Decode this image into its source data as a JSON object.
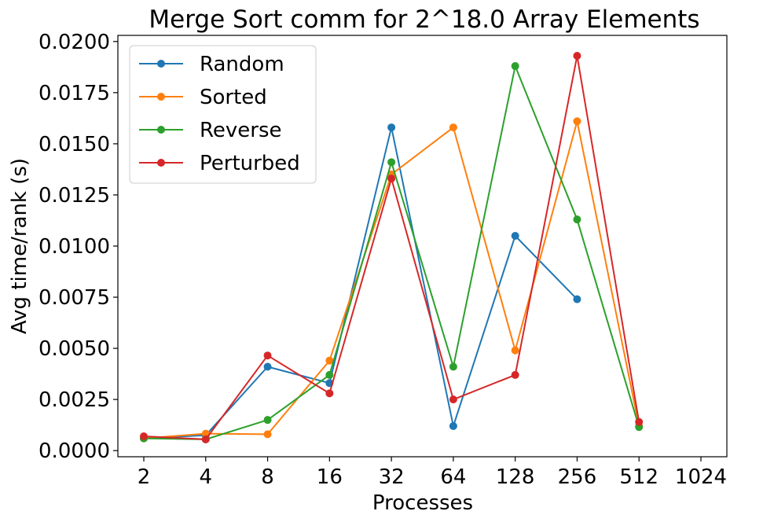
{
  "chart_data": {
    "type": "line",
    "title": "Merge Sort comm for 2^18.0 Array Elements",
    "xlabel": "Processes",
    "ylabel": "Avg time/rank (s)",
    "categories": [
      "2",
      "4",
      "8",
      "16",
      "32",
      "64",
      "128",
      "256",
      "512",
      "1024"
    ],
    "ylim": [
      -0.0003,
      0.0203
    ],
    "yticks": [
      "0.0000",
      "0.0025",
      "0.0050",
      "0.0075",
      "0.0100",
      "0.0125",
      "0.0150",
      "0.0175",
      "0.0200"
    ],
    "ytick_values": [
      0,
      0.0025,
      0.005,
      0.0075,
      0.01,
      0.0125,
      0.015,
      0.0175,
      0.02
    ],
    "legend_position": "top-left",
    "grid": false,
    "series": [
      {
        "name": "Random",
        "color": "#1f77b4",
        "values": [
          0.0006,
          0.00075,
          0.0041,
          0.0033,
          0.0158,
          0.0012,
          0.0105,
          0.0074,
          null,
          null
        ]
      },
      {
        "name": "Sorted",
        "color": "#ff7f0e",
        "values": [
          0.0006,
          0.00083,
          0.0008,
          0.0044,
          0.0135,
          0.0158,
          0.0049,
          0.0161,
          0.0012,
          null
        ]
      },
      {
        "name": "Reverse",
        "color": "#2ca02c",
        "values": [
          0.0006,
          0.00055,
          0.0015,
          0.0037,
          0.0141,
          0.0041,
          0.0188,
          0.0113,
          0.00115,
          null
        ]
      },
      {
        "name": "Perturbed",
        "color": "#d62728",
        "values": [
          0.0007,
          0.00055,
          0.00465,
          0.0028,
          0.0133,
          0.0025,
          0.0037,
          0.0193,
          0.0014,
          null
        ]
      }
    ]
  }
}
